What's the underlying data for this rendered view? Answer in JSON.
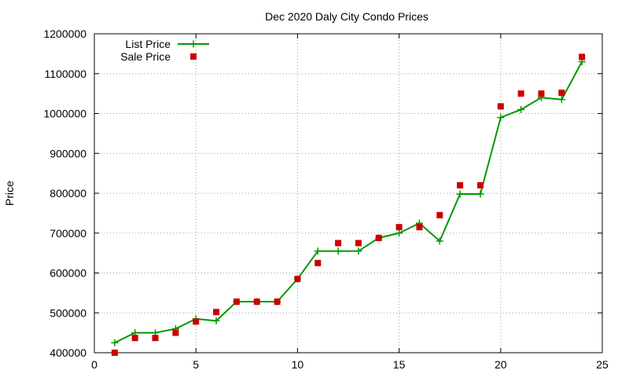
{
  "chart_data": {
    "type": "line",
    "title": "Dec 2020 Daly City Condo Prices",
    "xlabel": "",
    "ylabel": "Price",
    "xlim": [
      0,
      25
    ],
    "ylim": [
      400000,
      1200000
    ],
    "xticks": [
      0,
      5,
      10,
      15,
      20,
      25
    ],
    "yticks": [
      400000,
      500000,
      600000,
      700000,
      800000,
      900000,
      1000000,
      1100000,
      1200000
    ],
    "grid": true,
    "legend_position": "top-left",
    "series": [
      {
        "name": "List Price",
        "style": "line+cross",
        "color": "#009900",
        "x": [
          1,
          2,
          3,
          4,
          5,
          6,
          7,
          8,
          9,
          10,
          11,
          12,
          13,
          14,
          15,
          16,
          17,
          18,
          19,
          20,
          21,
          22,
          23,
          24
        ],
        "y": [
          425000,
          450000,
          450000,
          460000,
          485000,
          480000,
          528000,
          528000,
          528000,
          585000,
          655000,
          655000,
          655000,
          688000,
          700000,
          725000,
          680000,
          798000,
          798000,
          990000,
          1010000,
          1040000,
          1035000,
          1130000
        ]
      },
      {
        "name": "Sale Price",
        "style": "square-markers",
        "color": "#cc0000",
        "x": [
          1,
          2,
          3,
          4,
          5,
          6,
          7,
          8,
          9,
          10,
          11,
          12,
          13,
          14,
          15,
          16,
          17,
          18,
          19,
          20,
          21,
          22,
          23,
          24
        ],
        "y": [
          400000,
          437000,
          437000,
          450000,
          478000,
          502000,
          528000,
          528000,
          528000,
          585000,
          625000,
          675000,
          675000,
          688000,
          715000,
          715000,
          745000,
          820000,
          820000,
          1018000,
          1050000,
          1050000,
          1052000,
          1142000
        ]
      }
    ]
  }
}
